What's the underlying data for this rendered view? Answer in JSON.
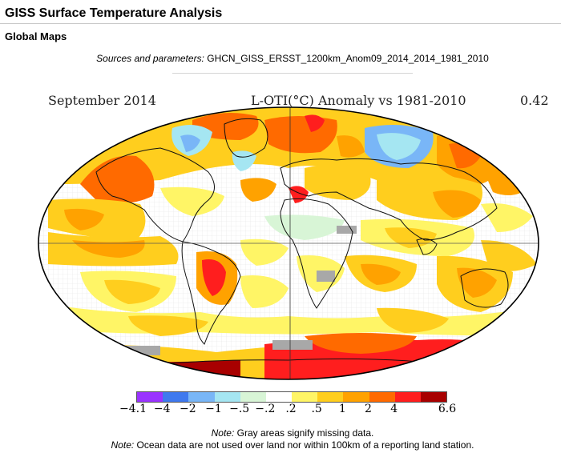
{
  "header": {
    "title": "GISS Surface Temperature Analysis",
    "section": "Global Maps"
  },
  "sources": {
    "label": "Sources and parameters:",
    "value": "GHCN_GISS_ERSST_1200km_Anom09_2014_2014_1981_2010"
  },
  "map": {
    "date": "September 2014",
    "title": "L-OTI(°C) Anomaly vs 1981-2010",
    "global_mean": "0.42"
  },
  "colorbar": {
    "colors": [
      "#9a33ff",
      "#3f79ee",
      "#79b6f7",
      "#a5e6f2",
      "#d8f5d6",
      "#ffffff",
      "#fff566",
      "#ffce1e",
      "#ffa200",
      "#ff6a00",
      "#ff1e1e",
      "#a80000"
    ],
    "ticks": [
      "-4.1",
      "-4",
      "-2",
      "-1",
      "-.5",
      "-.2",
      ".2",
      ".5",
      "1",
      "2",
      "4",
      "6.6"
    ]
  },
  "notes": {
    "missing_label": "Note:",
    "missing_text": " Gray areas signify missing data.",
    "ocean_label": "Note:",
    "ocean_text": " Ocean data are not used over land nor within 100km of a reporting land station."
  }
}
